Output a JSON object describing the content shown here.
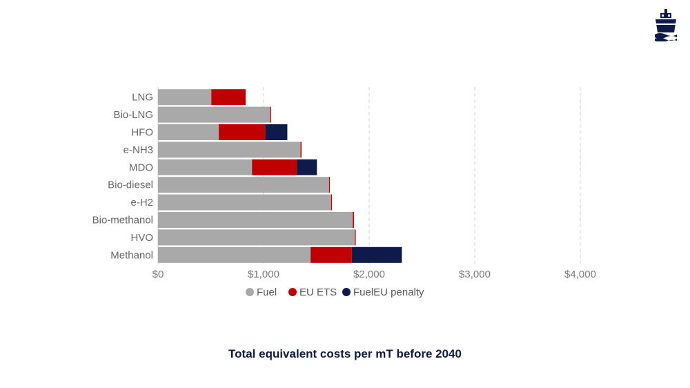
{
  "caption": "Total equivalent costs per mT before 2040",
  "logo_icon": "ship-icon",
  "colors": {
    "fuel": "#a9a9a9",
    "eu_ets": "#c00000",
    "fueleu_penalty": "#0d1a4a",
    "grid": "#d0d0d0",
    "caption": "#0f1a3d"
  },
  "chart_data": {
    "type": "bar",
    "orientation": "horizontal",
    "stacked": true,
    "title": "Total equivalent costs per mT before 2040",
    "categories": [
      "LNG",
      "Bio-LNG",
      "HFO",
      "e-NH3",
      "MDO",
      "Bio-diesel",
      "e-H2",
      "Bio-methanol",
      "HVO",
      "Methanol"
    ],
    "series": [
      {
        "name": "Fuel",
        "key": "fuel",
        "values": [
          505,
          1060,
          575,
          1350,
          890,
          1620,
          1640,
          1845,
          1865,
          1445
        ]
      },
      {
        "name": "EU ETS",
        "key": "eu_ets",
        "values": [
          325,
          10,
          440,
          10,
          425,
          8,
          8,
          12,
          8,
          390
        ]
      },
      {
        "name": "FuelEU penalty",
        "key": "fueleu_penalty",
        "values": [
          0,
          0,
          210,
          0,
          190,
          0,
          0,
          0,
          0,
          475
        ]
      }
    ],
    "xlim": [
      0,
      4000
    ],
    "xticks": [
      0,
      1000,
      2000,
      3000,
      4000
    ],
    "xtick_labels": [
      "$0",
      "$1,000",
      "$2,000",
      "$3,000",
      "$4,000"
    ],
    "xlabel": "",
    "ylabel": "",
    "grid": "vertical-dashed",
    "legend_position": "bottom-center"
  }
}
